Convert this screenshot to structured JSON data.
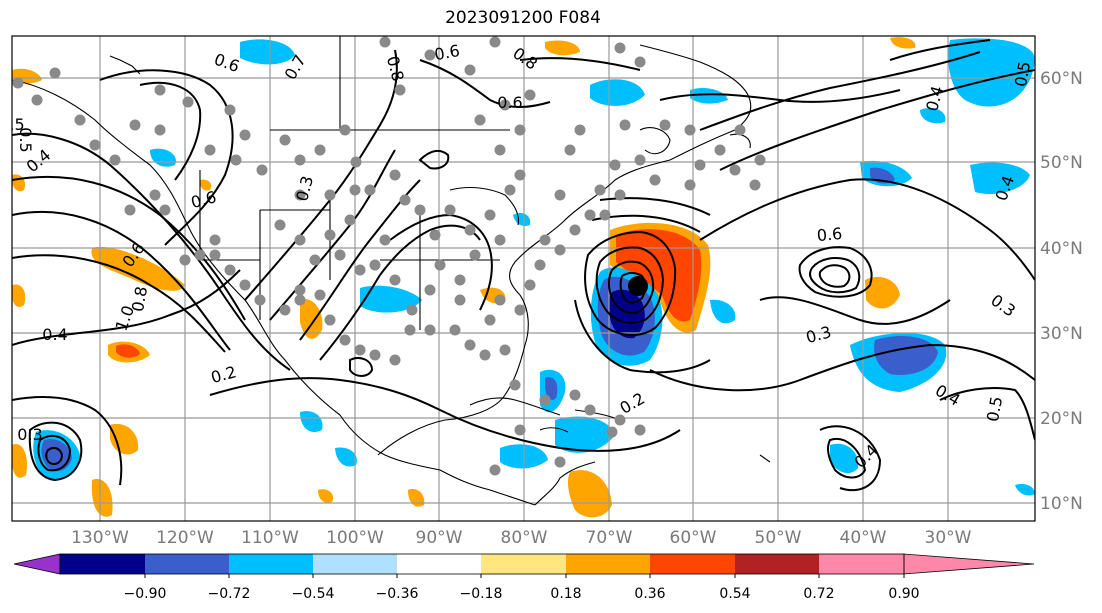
{
  "title": "2023091200 F084",
  "lon_labels": [
    "130°W",
    "120°W",
    "110°W",
    "100°W",
    "90°W",
    "80°W",
    "70°W",
    "60°W",
    "50°W",
    "40°W",
    "30°W"
  ],
  "lat_labels": [
    "60°N",
    "50°N",
    "40°N",
    "30°N",
    "20°N",
    "10°N"
  ],
  "colorbar": {
    "ticks": [
      "−0.90",
      "−0.72",
      "−0.54",
      "−0.36",
      "−0.18",
      "0.18",
      "0.36",
      "0.54",
      "0.72",
      "0.90"
    ],
    "colors": [
      "#9932cc",
      "#00008b",
      "#3a5fcd",
      "#00bfff",
      "#b0e0ff",
      "#ffffff",
      "#ffe680",
      "#ffa500",
      "#ff4500",
      "#b22222",
      "#ff88aa"
    ]
  },
  "contour_labels": [
    "0.6",
    "0.8",
    "0.6",
    "0.8",
    "0.7",
    "0.6",
    "0.5",
    "0.4",
    "0.5",
    "0.6",
    "0.3",
    "0.6",
    "0.8",
    "1.0",
    "0.4",
    "0.2",
    "0.3",
    "0.4",
    "0.3",
    "0.2",
    "0.6",
    "0.4",
    "0.3",
    "0.4",
    "0.5",
    "0.4",
    "0.5"
  ],
  "map_colors": {
    "grid": "#9a9a9a",
    "contour": "#000000",
    "station_dot": "#8a8a8a",
    "storm_center": "#000000"
  }
}
